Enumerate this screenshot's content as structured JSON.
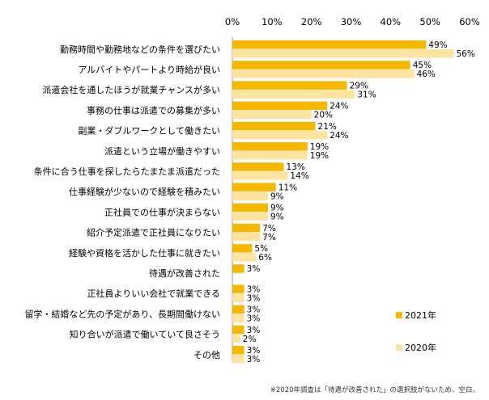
{
  "chart_data": {
    "type": "bar",
    "orientation": "horizontal",
    "title": "",
    "xlabel": "",
    "ylabel": "",
    "xlim": [
      0,
      60
    ],
    "tick_values": [
      0,
      10,
      20,
      30,
      40,
      50,
      60
    ],
    "tick_labels": [
      "0%",
      "10%",
      "20%",
      "30%",
      "40%",
      "50%",
      "60%"
    ],
    "value_suffix": "%",
    "grid": false,
    "legend_position": "bottom-right",
    "categories": [
      "勤務時間や勤務地などの条件を選びたい",
      "アルバイトやパートより時給が良い",
      "派遣会社を通したほうが就業チャンスが多い",
      "事務の仕事は派遣での募集が多い",
      "副業・ダブルワークとして働きたい",
      "派遣という立場が働きやすい",
      "条件に合う仕事を探したらたまたま派遣だった",
      "仕事経験が少ないので経験を積みたい",
      "正社員での仕事が決まらない",
      "紹介予定派遣で正社員になりたい",
      "経験や資格を活かした仕事に就きたい",
      "待遇が改善された",
      "正社員よりいい会社で就業できる",
      "留学・結婚など先の予定があり、長期間働けない",
      "知り合いが派遣で働いていて良さそう",
      "その他"
    ],
    "series": [
      {
        "name": "2021年",
        "color": "#f5b800",
        "values": [
          49,
          45,
          29,
          24,
          21,
          19,
          13,
          11,
          9,
          7,
          5,
          3,
          3,
          3,
          3,
          3
        ]
      },
      {
        "name": "2020年",
        "color": "#fde4a0",
        "values": [
          56,
          46,
          31,
          20,
          24,
          19,
          14,
          9,
          9,
          7,
          6,
          null,
          3,
          3,
          2,
          3
        ]
      }
    ]
  },
  "footnote": "※2020年調査は「待遇が改善された」の選択肢がないため、空白。"
}
